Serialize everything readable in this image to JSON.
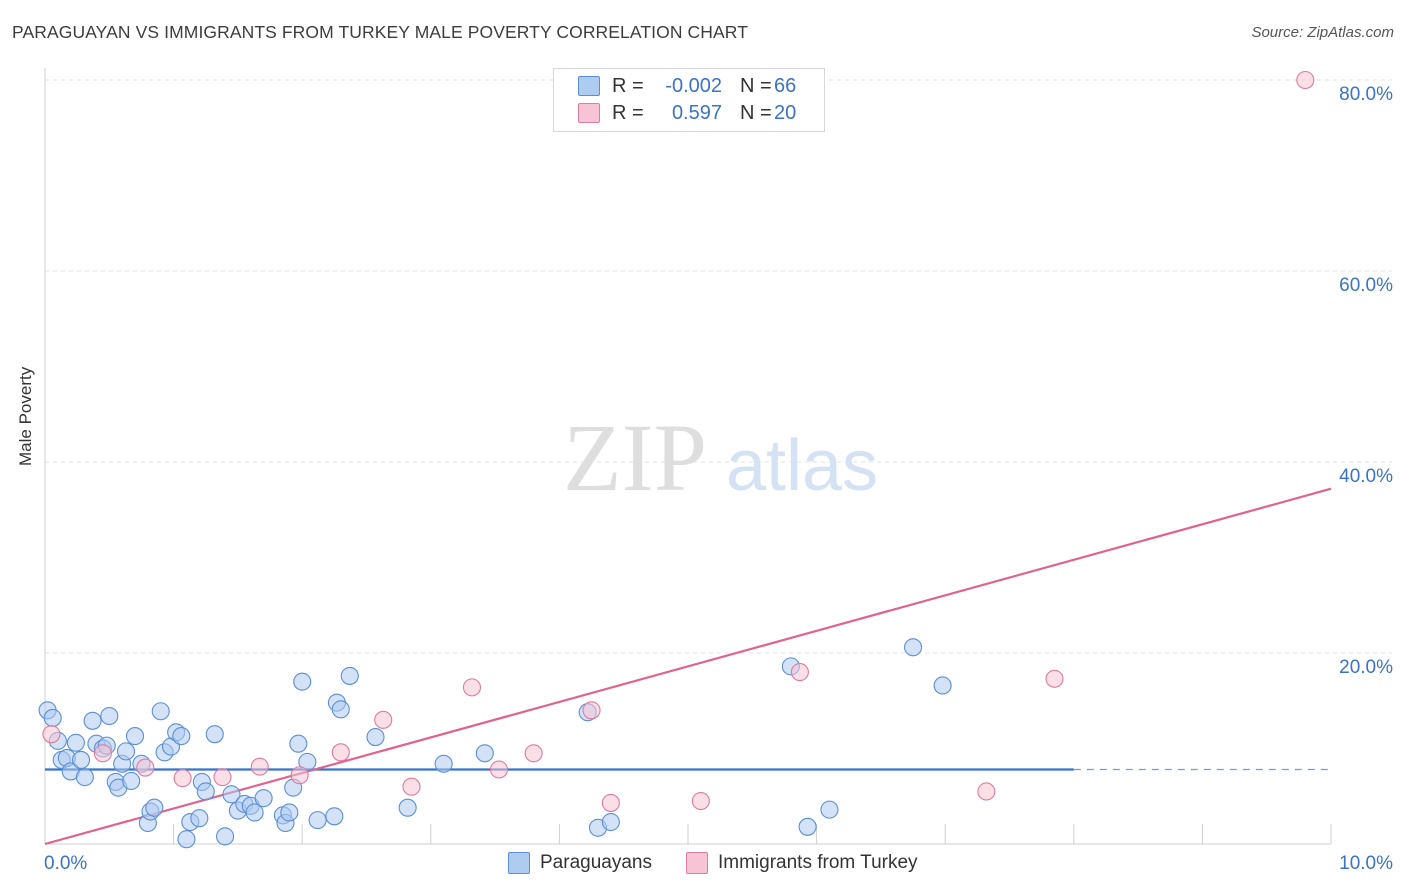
{
  "title": "PARAGUAYAN VS IMMIGRANTS FROM TURKEY MALE POVERTY CORRELATION CHART",
  "source": "Source: ZipAtlas.com",
  "watermark": {
    "zip": "ZIP",
    "atlas": "atlas"
  },
  "legend": {
    "rows": [
      {
        "r_label": "R =",
        "r_value": "-0.002",
        "n_label": "N =",
        "n_value": "66"
      },
      {
        "r_label": "R =",
        "r_value": "0.597",
        "n_label": "N =",
        "n_value": "20"
      }
    ]
  },
  "bottom_legend": {
    "paraguayans": "Paraguayans",
    "turkey": "Immigrants from Turkey"
  },
  "colors": {
    "blue_fill": "#aecbf0",
    "blue_stroke": "#5b8fd6",
    "blue_line": "#3573cc",
    "pink_fill": "#f6c4d4",
    "pink_stroke": "#e07aa0",
    "pink_line": "#e0638f",
    "axis_text": "#3a73c7"
  },
  "chart_data": {
    "type": "scatter",
    "title": "PARAGUAYAN VS IMMIGRANTS FROM TURKEY MALE POVERTY CORRELATION CHART",
    "xlabel": "",
    "ylabel": "Male Poverty",
    "xlim": [
      0,
      10
    ],
    "ylim": [
      0,
      80
    ],
    "x_tick_labels": [
      "0.0%",
      "10.0%"
    ],
    "y_ticks": [
      20,
      40,
      60,
      80
    ],
    "y_tick_labels": [
      "20.0%",
      "40.0%",
      "60.0%",
      "80.0%"
    ],
    "series": [
      {
        "name": "Paraguayans",
        "r": -0.002,
        "n": 66,
        "trend": {
          "x": [
            0,
            8.0
          ],
          "y": [
            7.8,
            7.8
          ],
          "dashed_extension_to": 10
        },
        "points": [
          [
            0.02,
            14.0
          ],
          [
            0.06,
            13.2
          ],
          [
            0.1,
            10.8
          ],
          [
            0.13,
            8.8
          ],
          [
            0.17,
            9.0
          ],
          [
            0.2,
            7.6
          ],
          [
            0.24,
            10.6
          ],
          [
            0.28,
            8.8
          ],
          [
            0.31,
            7.0
          ],
          [
            0.37,
            12.9
          ],
          [
            0.4,
            10.5
          ],
          [
            0.45,
            10.0
          ],
          [
            0.48,
            10.3
          ],
          [
            0.5,
            13.4
          ],
          [
            0.55,
            6.5
          ],
          [
            0.57,
            5.9
          ],
          [
            0.6,
            8.4
          ],
          [
            0.63,
            9.7
          ],
          [
            0.67,
            6.6
          ],
          [
            0.7,
            11.3
          ],
          [
            0.75,
            8.4
          ],
          [
            0.8,
            2.2
          ],
          [
            0.82,
            3.4
          ],
          [
            0.85,
            3.8
          ],
          [
            0.9,
            13.9
          ],
          [
            0.93,
            9.6
          ],
          [
            0.98,
            10.2
          ],
          [
            1.02,
            11.7
          ],
          [
            1.06,
            11.3
          ],
          [
            1.1,
            0.5
          ],
          [
            1.13,
            2.3
          ],
          [
            1.2,
            2.7
          ],
          [
            1.22,
            6.5
          ],
          [
            1.25,
            5.5
          ],
          [
            1.32,
            11.5
          ],
          [
            1.4,
            0.8
          ],
          [
            1.45,
            5.2
          ],
          [
            1.5,
            3.5
          ],
          [
            1.55,
            4.2
          ],
          [
            1.6,
            4.0
          ],
          [
            1.63,
            3.3
          ],
          [
            1.7,
            4.8
          ],
          [
            1.85,
            3.0
          ],
          [
            1.87,
            2.2
          ],
          [
            1.9,
            3.3
          ],
          [
            1.93,
            5.9
          ],
          [
            1.97,
            10.5
          ],
          [
            2.0,
            17.0
          ],
          [
            2.04,
            8.6
          ],
          [
            2.12,
            2.5
          ],
          [
            2.25,
            2.9
          ],
          [
            2.27,
            14.8
          ],
          [
            2.3,
            14.1
          ],
          [
            2.37,
            17.6
          ],
          [
            2.57,
            11.2
          ],
          [
            2.82,
            3.8
          ],
          [
            3.1,
            8.4
          ],
          [
            3.42,
            9.5
          ],
          [
            4.22,
            13.8
          ],
          [
            4.3,
            1.7
          ],
          [
            4.4,
            2.3
          ],
          [
            5.8,
            18.6
          ],
          [
            5.93,
            1.8
          ],
          [
            6.1,
            3.6
          ],
          [
            6.75,
            20.6
          ],
          [
            6.98,
            16.6
          ]
        ]
      },
      {
        "name": "Immigrants from Turkey",
        "r": 0.597,
        "n": 20,
        "trend": {
          "x": [
            0,
            10
          ],
          "y": [
            0,
            37.2
          ]
        },
        "points": [
          [
            0.05,
            11.5
          ],
          [
            0.45,
            9.5
          ],
          [
            0.78,
            8.0
          ],
          [
            1.07,
            6.9
          ],
          [
            1.38,
            7.0
          ],
          [
            1.67,
            8.1
          ],
          [
            1.98,
            7.2
          ],
          [
            2.3,
            9.6
          ],
          [
            2.63,
            13.0
          ],
          [
            2.85,
            6.0
          ],
          [
            3.32,
            16.4
          ],
          [
            3.53,
            7.8
          ],
          [
            3.8,
            9.5
          ],
          [
            4.25,
            14.0
          ],
          [
            4.4,
            4.3
          ],
          [
            5.1,
            4.5
          ],
          [
            5.87,
            18.0
          ],
          [
            7.32,
            5.5
          ],
          [
            7.85,
            17.3
          ],
          [
            9.8,
            80.0
          ]
        ]
      }
    ]
  }
}
